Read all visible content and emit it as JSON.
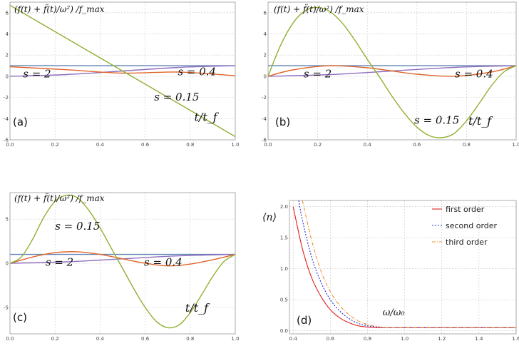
{
  "chart_data": [
    {
      "panel": "(a)",
      "type": "line",
      "ylabel": "(f(t) + f̈(t)/ω²) /f_max",
      "xlabel": "t/t_f",
      "xlim": [
        0,
        1
      ],
      "ylim": [
        -6,
        7
      ],
      "xticks": [
        0.0,
        0.2,
        0.4,
        0.6,
        0.8,
        1.0
      ],
      "xtick_labels": [
        "0.0",
        "0.2",
        "0.4",
        "0.6",
        "0.8",
        "1.0"
      ],
      "yticks": [
        -6,
        -4,
        -2,
        0,
        2,
        4,
        6
      ],
      "ytick_labels": [
        "-6",
        "-4",
        "-2",
        "0",
        "2",
        "4",
        "6"
      ],
      "grid": true,
      "annotations": [
        "s = 2",
        "s = 0.4",
        "s = 0.15"
      ],
      "series": [
        {
          "name": "",
          "color": "#5e81b5",
          "x": [
            0,
            1
          ],
          "y": [
            1,
            1
          ]
        },
        {
          "name": "",
          "color": "#8f6fbf",
          "x": [
            0,
            0.25,
            0.5,
            0.75,
            1
          ],
          "y": [
            0.0,
            0.16,
            0.5,
            0.84,
            1.0
          ]
        },
        {
          "name": "",
          "color": "#e0642a",
          "x": [
            0,
            0.25,
            0.5,
            0.75,
            1
          ],
          "y": [
            0.9,
            0.62,
            0.3,
            0.4,
            0.05
          ]
        },
        {
          "name": "",
          "color": "#8fb032",
          "x": [
            0,
            1
          ],
          "y": [
            6.7,
            -5.7
          ]
        }
      ]
    },
    {
      "panel": "(b)",
      "type": "line",
      "ylabel": "(f(t) + f̈(t)/ω²) /f_max",
      "xlabel": "t/t_f",
      "xlim": [
        0,
        1
      ],
      "ylim": [
        -6,
        7
      ],
      "xticks": [
        0.0,
        0.2,
        0.4,
        0.6,
        0.8,
        1.0
      ],
      "xtick_labels": [
        "0.0",
        "0.2",
        "0.4",
        "0.6",
        "0.8",
        "1.0"
      ],
      "yticks": [
        -6,
        -4,
        -2,
        0,
        2,
        4,
        6
      ],
      "ytick_labels": [
        "-6",
        "-4",
        "-2",
        "0",
        "2",
        "4",
        "6"
      ],
      "grid": true,
      "annotations": [
        "s = 2",
        "s = 0.4",
        "s = 0.15"
      ],
      "series": [
        {
          "name": "",
          "color": "#5e81b5",
          "x": [
            0,
            1
          ],
          "y": [
            1,
            1
          ]
        },
        {
          "name": "",
          "color": "#8f6fbf",
          "x": [
            0,
            0.25,
            0.5,
            0.75,
            1
          ],
          "y": [
            0.0,
            0.16,
            0.5,
            0.84,
            1.0
          ]
        },
        {
          "name": "",
          "color": "#e0642a",
          "x": [
            0,
            0.1,
            0.25,
            0.4,
            0.5,
            0.6,
            0.75,
            0.9,
            1
          ],
          "y": [
            0,
            0.6,
            1.0,
            0.8,
            0.5,
            0.2,
            0.0,
            0.4,
            1.0
          ]
        },
        {
          "name": "",
          "color": "#8fb032",
          "x": [
            0,
            0.05,
            0.1,
            0.15,
            0.2,
            0.25,
            0.3,
            0.35,
            0.4,
            0.45,
            0.5,
            0.55,
            0.6,
            0.65,
            0.7,
            0.75,
            0.8,
            0.85,
            0.9,
            0.95,
            1
          ],
          "y": [
            0,
            2.9,
            5.0,
            6.2,
            6.5,
            6.1,
            5.0,
            3.4,
            1.6,
            -0.1,
            -1.9,
            -3.5,
            -4.8,
            -5.6,
            -5.8,
            -5.4,
            -4.2,
            -2.6,
            -0.9,
            0.4,
            1.0
          ]
        }
      ]
    },
    {
      "panel": "(c)",
      "type": "line",
      "ylabel": "(f(t) + f̈(t)/ω²) /f_max",
      "xlabel": "t/t_f",
      "xlim": [
        0,
        1
      ],
      "ylim": [
        -8,
        8
      ],
      "xticks": [
        0.0,
        0.2,
        0.4,
        0.6,
        0.8,
        1.0
      ],
      "xtick_labels": [
        "0.0",
        "0.2",
        "0.4",
        "0.6",
        "0.8",
        "1.0"
      ],
      "yticks": [
        -5,
        0,
        5
      ],
      "ytick_labels": [
        "-5",
        "0",
        "5"
      ],
      "grid": true,
      "annotations": [
        "s = 0.15",
        "s = 2",
        "s = 0.4"
      ],
      "series": [
        {
          "name": "",
          "color": "#5e81b5",
          "x": [
            0,
            1
          ],
          "y": [
            1,
            1
          ]
        },
        {
          "name": "",
          "color": "#8f6fbf",
          "x": [
            0,
            0.25,
            0.5,
            0.75,
            1
          ],
          "y": [
            0.0,
            0.16,
            0.5,
            0.84,
            1.0
          ]
        },
        {
          "name": "",
          "color": "#e0642a",
          "x": [
            0,
            0.1,
            0.2,
            0.3,
            0.4,
            0.5,
            0.6,
            0.7,
            0.8,
            0.9,
            1
          ],
          "y": [
            0,
            0.7,
            1.2,
            1.3,
            1.0,
            0.5,
            0.0,
            -0.3,
            -0.1,
            0.4,
            1.0
          ]
        },
        {
          "name": "",
          "color": "#8fb032",
          "x": [
            0,
            0.05,
            0.1,
            0.15,
            0.2,
            0.25,
            0.3,
            0.35,
            0.4,
            0.45,
            0.5,
            0.55,
            0.6,
            0.65,
            0.7,
            0.75,
            0.8,
            0.85,
            0.9,
            0.95,
            1
          ],
          "y": [
            0,
            0.7,
            2.7,
            5.2,
            7.0,
            7.7,
            7.4,
            6.0,
            4.0,
            1.7,
            -0.6,
            -2.9,
            -5.0,
            -6.6,
            -7.3,
            -7.0,
            -5.6,
            -3.6,
            -1.5,
            0.2,
            1.0
          ]
        }
      ]
    },
    {
      "panel": "(d)",
      "type": "line",
      "ylabel": "⟨n⟩",
      "xlabel": "ω/ω₀",
      "xlim": [
        0.38,
        1.6
      ],
      "ylim": [
        -0.05,
        2.1
      ],
      "xticks": [
        0.4,
        0.6,
        0.8,
        1.0,
        1.2,
        1.4,
        1.6
      ],
      "xtick_labels": [
        "0.4",
        "0.6",
        "0.8",
        "1.0",
        "1.2",
        "1.4",
        "1.6"
      ],
      "yticks": [
        0.0,
        0.5,
        1.0,
        1.5,
        2.0
      ],
      "ytick_labels": [
        "0.0",
        "0.5",
        "1.0",
        "1.5",
        "2.0"
      ],
      "grid": true,
      "legend": "top-right",
      "series": [
        {
          "name": "first order",
          "color": "#e02020",
          "dash": "",
          "x": [
            0.4,
            0.45,
            0.5,
            0.55,
            0.6,
            0.65,
            0.7,
            0.75,
            0.8,
            0.9,
            1.0,
            1.2,
            1.4,
            1.6
          ],
          "y": [
            2.0,
            1.32,
            0.85,
            0.55,
            0.34,
            0.21,
            0.13,
            0.08,
            0.06,
            0.05,
            0.05,
            0.05,
            0.05,
            0.05
          ]
        },
        {
          "name": "second order",
          "color": "#2030e0",
          "dash": "2,2",
          "x": [
            0.43,
            0.45,
            0.5,
            0.55,
            0.6,
            0.65,
            0.7,
            0.75,
            0.8,
            0.9,
            1.0,
            1.2,
            1.4,
            1.6
          ],
          "y": [
            2.1,
            1.78,
            1.18,
            0.78,
            0.5,
            0.32,
            0.2,
            0.12,
            0.08,
            0.05,
            0.05,
            0.05,
            0.05,
            0.05
          ]
        },
        {
          "name": "third order",
          "color": "#f09030",
          "dash": "5,2,1,2",
          "x": [
            0.45,
            0.5,
            0.55,
            0.6,
            0.65,
            0.7,
            0.75,
            0.8,
            0.85,
            0.9,
            1.0,
            1.2,
            1.4,
            1.6
          ],
          "y": [
            2.1,
            1.45,
            0.96,
            0.63,
            0.41,
            0.26,
            0.16,
            0.1,
            0.07,
            0.05,
            0.05,
            0.05,
            0.05,
            0.05
          ]
        }
      ]
    }
  ]
}
